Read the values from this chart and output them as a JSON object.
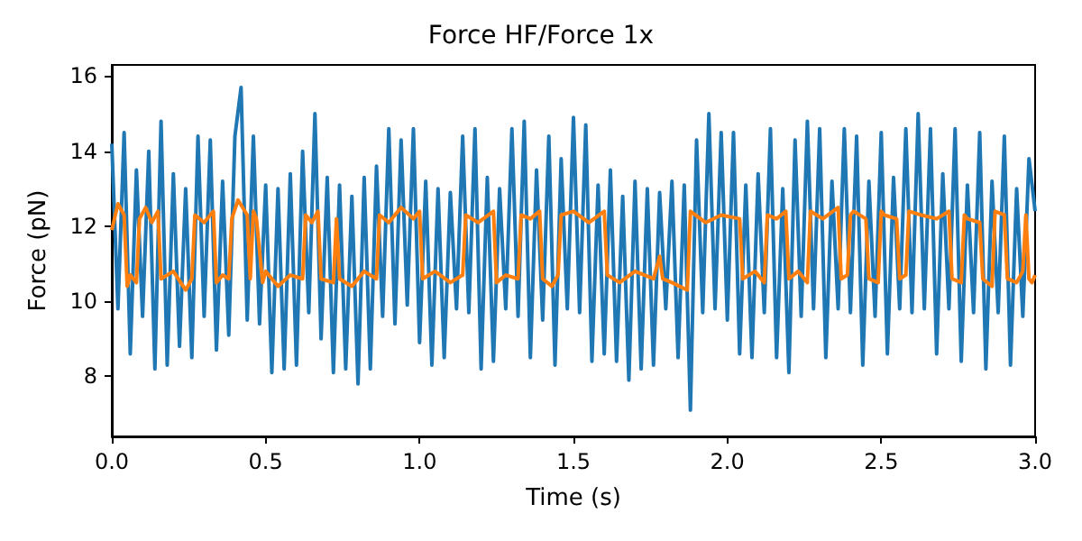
{
  "chart_data": {
    "type": "line",
    "title": "Force HF/Force 1x",
    "xlabel": "Time (s)",
    "ylabel": "Force (pN)",
    "xlim": [
      0,
      3
    ],
    "xticks": [
      {
        "value": 0,
        "label": "0.0"
      },
      {
        "value": 0.5,
        "label": "0.5"
      },
      {
        "value": 1,
        "label": "1.0"
      },
      {
        "value": 1.5,
        "label": "1.5"
      },
      {
        "value": 2,
        "label": "2.0"
      },
      {
        "value": 2.5,
        "label": "2.5"
      },
      {
        "value": 3,
        "label": "3.0"
      }
    ],
    "ylim": [
      6.4,
      16.3
    ],
    "yticks": [
      8,
      10,
      12,
      14,
      16
    ],
    "grid": false,
    "marker": "none",
    "series": [
      {
        "color": "#1f77b4",
        "x": [
          0,
          0.02,
          0.04,
          0.06,
          0.08,
          0.1,
          0.12,
          0.14,
          0.16,
          0.18,
          0.2,
          0.22,
          0.24,
          0.26,
          0.28,
          0.3,
          0.32,
          0.34,
          0.36,
          0.38,
          0.4,
          0.42,
          0.44,
          0.46,
          0.48,
          0.5,
          0.52,
          0.54,
          0.56,
          0.58,
          0.6,
          0.62,
          0.64,
          0.66,
          0.68,
          0.7,
          0.72,
          0.74,
          0.76,
          0.78,
          0.8,
          0.82,
          0.84,
          0.86,
          0.88,
          0.9,
          0.92,
          0.94,
          0.96,
          0.98,
          1,
          1.02,
          1.04,
          1.06,
          1.08,
          1.1,
          1.12,
          1.14,
          1.16,
          1.18,
          1.2,
          1.22,
          1.24,
          1.26,
          1.28,
          1.3,
          1.32,
          1.34,
          1.36,
          1.38,
          1.4,
          1.42,
          1.44,
          1.46,
          1.48,
          1.5,
          1.52,
          1.54,
          1.56,
          1.58,
          1.6,
          1.62,
          1.64,
          1.66,
          1.68,
          1.7,
          1.72,
          1.74,
          1.76,
          1.78,
          1.8,
          1.82,
          1.84,
          1.86,
          1.88,
          1.9,
          1.92,
          1.94,
          1.96,
          1.98,
          2,
          2.02,
          2.04,
          2.06,
          2.08,
          2.1,
          2.12,
          2.14,
          2.16,
          2.18,
          2.2,
          2.22,
          2.24,
          2.26,
          2.28,
          2.3,
          2.32,
          2.34,
          2.36,
          2.38,
          2.4,
          2.42,
          2.44,
          2.46,
          2.48,
          2.5,
          2.52,
          2.54,
          2.56,
          2.58,
          2.6,
          2.62,
          2.64,
          2.66,
          2.68,
          2.7,
          2.72,
          2.74,
          2.76,
          2.78,
          2.8,
          2.82,
          2.84,
          2.86,
          2.88,
          2.9,
          2.92,
          2.94,
          2.96,
          2.98,
          3
        ],
        "values": [
          14.2,
          9.8,
          14.5,
          8.6,
          13.5,
          9.6,
          14,
          8.2,
          14.8,
          8.3,
          13.4,
          8.8,
          13,
          8.5,
          14.4,
          9.6,
          14.3,
          8.7,
          13.2,
          9.1,
          14.4,
          15.7,
          9.5,
          14.4,
          9.4,
          13.1,
          8.1,
          13,
          8.2,
          13.4,
          8.3,
          14,
          9.7,
          15,
          9,
          13.3,
          8.1,
          13.1,
          8.2,
          12.8,
          7.8,
          13.3,
          8.2,
          13.6,
          9.6,
          14.6,
          9.4,
          14.3,
          9.9,
          14.6,
          8.9,
          13.2,
          8.3,
          13,
          8.5,
          12.9,
          9.8,
          14.4,
          9.7,
          14.6,
          8.2,
          13.3,
          8.4,
          13,
          9.8,
          14.6,
          9.6,
          14.8,
          8.5,
          13.5,
          9.5,
          14.4,
          8.3,
          13.8,
          9.8,
          14.9,
          9.7,
          14.7,
          8.4,
          13.1,
          8.6,
          13.5,
          8.4,
          12.8,
          7.9,
          13.2,
          8.2,
          13,
          8.3,
          12.9,
          9.8,
          13.2,
          8.5,
          13.1,
          7.1,
          14.3,
          9.7,
          15,
          9.8,
          14.5,
          9.5,
          14.5,
          8.6,
          13.1,
          8.5,
          13.4,
          9.7,
          14.6,
          8.5,
          13,
          8.1,
          14.3,
          9.6,
          14.8,
          9.8,
          14.6,
          8.5,
          13.2,
          9.8,
          14.6,
          9.7,
          14.4,
          8.3,
          13.2,
          9.6,
          14.5,
          8.6,
          13.3,
          9.8,
          14.6,
          9.7,
          15,
          9.8,
          14.6,
          8.6,
          13.4,
          9.8,
          14.6,
          8.4,
          13.1,
          9.7,
          14.5,
          8.2,
          13.2,
          9.7,
          14.4,
          8.3,
          13,
          9.6,
          13.8,
          12.4
        ]
      },
      {
        "color": "#ff7f0e",
        "x": [
          0,
          0.02,
          0.04,
          0.05,
          0.06,
          0.08,
          0.09,
          0.11,
          0.13,
          0.15,
          0.16,
          0.2,
          0.24,
          0.26,
          0.27,
          0.3,
          0.33,
          0.34,
          0.36,
          0.38,
          0.39,
          0.41,
          0.44,
          0.45,
          0.46,
          0.47,
          0.49,
          0.5,
          0.54,
          0.58,
          0.62,
          0.63,
          0.65,
          0.67,
          0.68,
          0.72,
          0.73,
          0.74,
          0.78,
          0.82,
          0.86,
          0.87,
          0.9,
          0.94,
          0.98,
          1.0,
          1.01,
          1.05,
          1.1,
          1.14,
          1.15,
          1.19,
          1.24,
          1.25,
          1.28,
          1.32,
          1.33,
          1.36,
          1.39,
          1.4,
          1.43,
          1.45,
          1.46,
          1.5,
          1.55,
          1.6,
          1.61,
          1.65,
          1.7,
          1.76,
          1.78,
          1.79,
          1.82,
          1.87,
          1.88,
          1.93,
          1.98,
          2.04,
          2.05,
          2.09,
          2.12,
          2.13,
          2.16,
          2.19,
          2.2,
          2.23,
          2.26,
          2.27,
          2.31,
          2.36,
          2.37,
          2.39,
          2.4,
          2.41,
          2.45,
          2.46,
          2.49,
          2.5,
          2.51,
          2.55,
          2.56,
          2.58,
          2.59,
          2.63,
          2.68,
          2.72,
          2.73,
          2.76,
          2.77,
          2.78,
          2.82,
          2.83,
          2.86,
          2.87,
          2.9,
          2.91,
          2.94,
          2.96,
          2.97,
          2.98,
          2.99,
          3
        ],
        "values": [
          11.9,
          12.6,
          12.3,
          10.4,
          10.7,
          10.5,
          12.2,
          12.5,
          12.1,
          12.4,
          10.6,
          10.8,
          10.3,
          10.6,
          12.3,
          12.1,
          12.4,
          10.5,
          10.7,
          10.6,
          12.2,
          12.7,
          12.3,
          10.6,
          12.4,
          12.2,
          10.5,
          10.8,
          10.4,
          10.7,
          10.6,
          12.3,
          12.1,
          12.4,
          10.6,
          10.5,
          12.2,
          10.6,
          10.4,
          10.8,
          10.6,
          12.3,
          12.1,
          12.5,
          12.2,
          12.4,
          10.6,
          10.8,
          10.5,
          10.7,
          12.3,
          12.1,
          12.4,
          10.5,
          10.7,
          10.6,
          12.3,
          12.2,
          12.4,
          10.6,
          10.4,
          10.7,
          12.3,
          12.4,
          12.1,
          12.4,
          10.7,
          10.5,
          10.8,
          10.6,
          11.2,
          10.6,
          10.5,
          10.3,
          12.4,
          12.1,
          12.3,
          12.2,
          10.6,
          10.8,
          10.5,
          12.3,
          12.2,
          12.4,
          10.6,
          10.8,
          10.5,
          12.4,
          12.2,
          12.5,
          10.6,
          10.7,
          12.3,
          12.4,
          12.2,
          10.6,
          10.5,
          12.4,
          12.3,
          12.2,
          10.6,
          10.7,
          12.4,
          12.3,
          12.2,
          12.4,
          10.6,
          10.5,
          12.3,
          12.2,
          12.1,
          10.6,
          10.4,
          12.4,
          12.3,
          10.6,
          10.5,
          10.8,
          12.3,
          10.6,
          10.5,
          10.7
        ]
      }
    ]
  }
}
